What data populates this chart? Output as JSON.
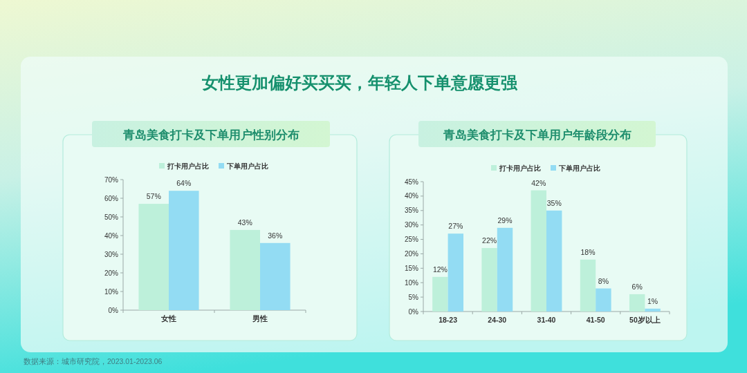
{
  "chart_data": [
    {
      "type": "other",
      "title": "女性更加偏好买买买，年轻人下单意愿更强",
      "annotations": [
        "数据来源：城市研究院，2023.01-2023.06"
      ]
    },
    {
      "type": "bar",
      "title": "青岛美食打卡及下单用户性别分布",
      "categories": [
        "女性",
        "男性"
      ],
      "series": [
        {
          "name": "打卡用户占比",
          "color": "#bdf0da",
          "values": [
            57,
            43
          ],
          "value_labels": [
            "57%",
            "43%"
          ]
        },
        {
          "name": "下单用户占比",
          "color": "#93dcf3",
          "values": [
            64,
            36
          ],
          "value_labels": [
            "64%",
            "36%"
          ]
        }
      ],
      "ylim": [
        0,
        70
      ],
      "yticks": [
        {
          "value": 0,
          "label": "0%"
        },
        {
          "value": 10,
          "label": "10%"
        },
        {
          "value": 20,
          "label": "20%"
        },
        {
          "value": 30,
          "label": "30%"
        },
        {
          "value": 40,
          "label": "40%"
        },
        {
          "value": 50,
          "label": "50%"
        },
        {
          "value": 60,
          "label": "60%"
        },
        {
          "value": 70,
          "label": "70%"
        }
      ],
      "legend": "top"
    },
    {
      "type": "bar",
      "title": "青岛美食打卡及下单用户年龄段分布",
      "categories": [
        "18-23",
        "24-30",
        "31-40",
        "41-50",
        "50岁以上"
      ],
      "series": [
        {
          "name": "打卡用户占比",
          "color": "#bdf0da",
          "values": [
            12,
            22,
            42,
            18,
            6
          ],
          "value_labels": [
            "12%",
            "22%",
            "42%",
            "18%",
            "6%"
          ]
        },
        {
          "name": "下单用户占比",
          "color": "#93dcf3",
          "values": [
            27,
            29,
            35,
            8,
            1
          ],
          "value_labels": [
            "27%",
            "29%",
            "35%",
            "8%",
            "1%"
          ]
        }
      ],
      "ylim": [
        0,
        45
      ],
      "yticks": [
        {
          "value": 0,
          "label": "0%"
        },
        {
          "value": 5,
          "label": "5%"
        },
        {
          "value": 10,
          "label": "10%"
        },
        {
          "value": 15,
          "label": "15%"
        },
        {
          "value": 20,
          "label": "20%"
        },
        {
          "value": 25,
          "label": "25%"
        },
        {
          "value": 30,
          "label": "30%"
        },
        {
          "value": 35,
          "label": "35%"
        },
        {
          "value": 40,
          "label": "40%"
        },
        {
          "value": 45,
          "label": "45%"
        }
      ],
      "legend": "top"
    }
  ]
}
